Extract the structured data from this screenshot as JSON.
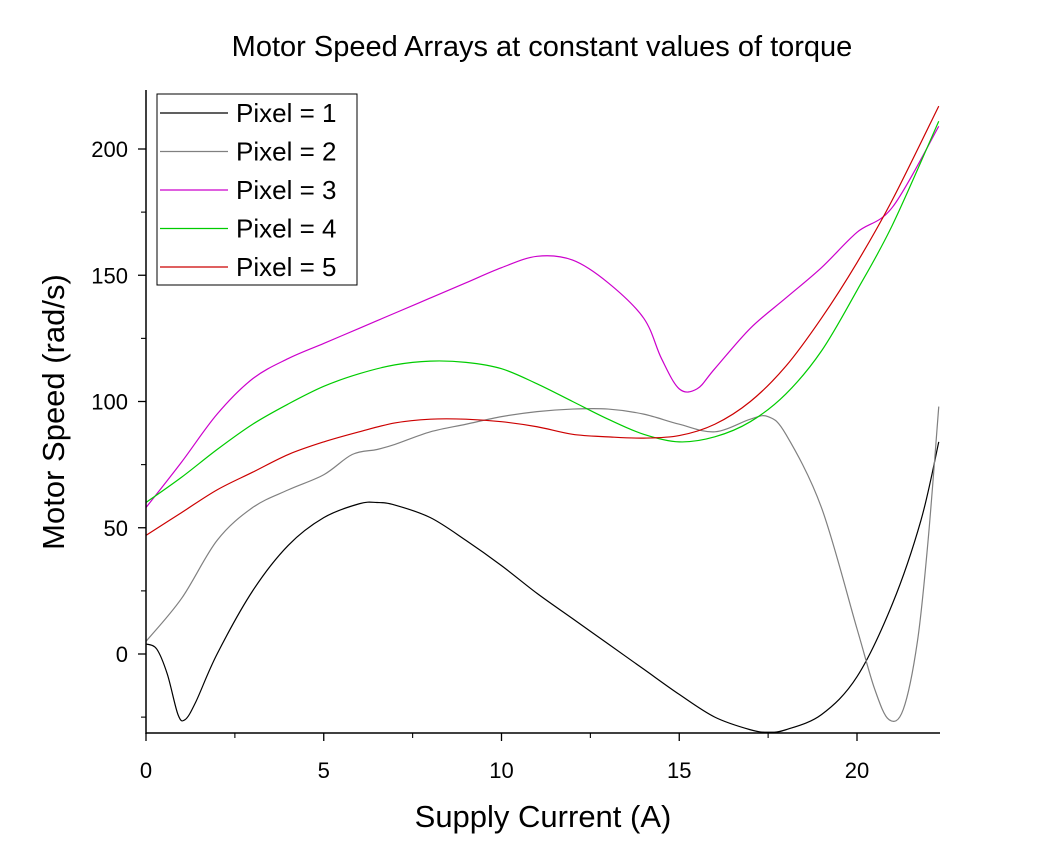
{
  "chart_data": {
    "type": "line",
    "title": "Motor Speed Arrays at constant values of torque",
    "xlabel": "Supply Current (A)",
    "ylabel": "Motor Speed (rad/s)",
    "xlim": [
      0,
      22.3
    ],
    "ylim": [
      -31,
      222
    ],
    "xticks": [
      0,
      5,
      10,
      15,
      20
    ],
    "yticks": [
      0,
      50,
      100,
      150,
      200
    ],
    "xminor": [
      2.5,
      7.5,
      12.5,
      17.5
    ],
    "yminor": [
      -25,
      25,
      75,
      125,
      175
    ],
    "grid": false,
    "legend_position": "top-left",
    "series": [
      {
        "name": "Pixel = 1",
        "color": "#000000",
        "points": [
          [
            0,
            4
          ],
          [
            0.3,
            2
          ],
          [
            0.6,
            -8
          ],
          [
            0.9,
            -24
          ],
          [
            1.1,
            -26
          ],
          [
            1.4,
            -19
          ],
          [
            2,
            0
          ],
          [
            3,
            25
          ],
          [
            4,
            43
          ],
          [
            5,
            54
          ],
          [
            6,
            59.5
          ],
          [
            6.5,
            60
          ],
          [
            7,
            59
          ],
          [
            8,
            54
          ],
          [
            9,
            45
          ],
          [
            10,
            35
          ],
          [
            11,
            24
          ],
          [
            12,
            14
          ],
          [
            13,
            4
          ],
          [
            14,
            -6
          ],
          [
            15,
            -16
          ],
          [
            16,
            -25
          ],
          [
            17,
            -30
          ],
          [
            17.5,
            -31
          ],
          [
            18,
            -30
          ],
          [
            19,
            -24
          ],
          [
            20,
            -9
          ],
          [
            21,
            20
          ],
          [
            21.8,
            53
          ],
          [
            22.3,
            84
          ]
        ]
      },
      {
        "name": "Pixel = 2",
        "color": "#808080",
        "points": [
          [
            0,
            5
          ],
          [
            1,
            22
          ],
          [
            2,
            45
          ],
          [
            3,
            58
          ],
          [
            4,
            65
          ],
          [
            5,
            71
          ],
          [
            5.8,
            79
          ],
          [
            6.5,
            81
          ],
          [
            7,
            83
          ],
          [
            8,
            88
          ],
          [
            9,
            91
          ],
          [
            10,
            94
          ],
          [
            11,
            96
          ],
          [
            12,
            97
          ],
          [
            13,
            97
          ],
          [
            14,
            95
          ],
          [
            15,
            91
          ],
          [
            16,
            88
          ],
          [
            17,
            93
          ],
          [
            17.5,
            94
          ],
          [
            18,
            87
          ],
          [
            19,
            58
          ],
          [
            20,
            10
          ],
          [
            20.5,
            -14
          ],
          [
            20.9,
            -26
          ],
          [
            21.3,
            -22
          ],
          [
            21.7,
            5
          ],
          [
            22,
            45
          ],
          [
            22.3,
            98
          ]
        ]
      },
      {
        "name": "Pixel = 3",
        "color": "#cc00cc",
        "points": [
          [
            0,
            58
          ],
          [
            1,
            76
          ],
          [
            2,
            95
          ],
          [
            3,
            109
          ],
          [
            4,
            117
          ],
          [
            5,
            123
          ],
          [
            6,
            129
          ],
          [
            7,
            135
          ],
          [
            8,
            141
          ],
          [
            9,
            147
          ],
          [
            10,
            153
          ],
          [
            11,
            157.5
          ],
          [
            12,
            156
          ],
          [
            13,
            147
          ],
          [
            14,
            133
          ],
          [
            14.5,
            117
          ],
          [
            15,
            105
          ],
          [
            15.5,
            105
          ],
          [
            16,
            113
          ],
          [
            17,
            129
          ],
          [
            18,
            141
          ],
          [
            19,
            153
          ],
          [
            20,
            167
          ],
          [
            21,
            177
          ],
          [
            22.3,
            209
          ]
        ]
      },
      {
        "name": "Pixel = 4",
        "color": "#00cc00",
        "points": [
          [
            0,
            60
          ],
          [
            1,
            70
          ],
          [
            2,
            81
          ],
          [
            3,
            91
          ],
          [
            4,
            99
          ],
          [
            5,
            106
          ],
          [
            6,
            111
          ],
          [
            7,
            114.5
          ],
          [
            8,
            116
          ],
          [
            9,
            115.5
          ],
          [
            10,
            113
          ],
          [
            11,
            107
          ],
          [
            12,
            100
          ],
          [
            13,
            93
          ],
          [
            14,
            87
          ],
          [
            15,
            84
          ],
          [
            16,
            86
          ],
          [
            17,
            92
          ],
          [
            18,
            103
          ],
          [
            19,
            120
          ],
          [
            20,
            144
          ],
          [
            21,
            170
          ],
          [
            22.3,
            211
          ]
        ]
      },
      {
        "name": "Pixel = 5",
        "color": "#cc0000",
        "points": [
          [
            0,
            47
          ],
          [
            1,
            56
          ],
          [
            2,
            65
          ],
          [
            3,
            72
          ],
          [
            4,
            79
          ],
          [
            5,
            84
          ],
          [
            6,
            88
          ],
          [
            7,
            91.5
          ],
          [
            8,
            93
          ],
          [
            9,
            93
          ],
          [
            10,
            92
          ],
          [
            11,
            90
          ],
          [
            12,
            87
          ],
          [
            13,
            86
          ],
          [
            14,
            85.5
          ],
          [
            15,
            86.5
          ],
          [
            16,
            91
          ],
          [
            17,
            100
          ],
          [
            18,
            114
          ],
          [
            19,
            133
          ],
          [
            20,
            155
          ],
          [
            21,
            180
          ],
          [
            22.3,
            217
          ]
        ]
      }
    ]
  }
}
